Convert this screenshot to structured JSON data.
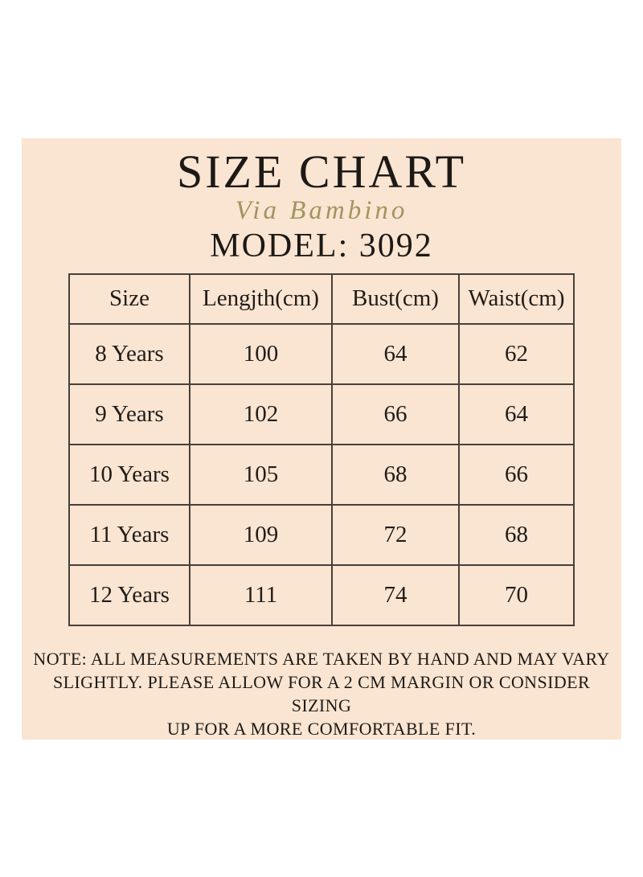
{
  "colors": {
    "page_background": "#ffffff",
    "panel_background": "#fae5d2",
    "table_border": "#47403a",
    "text": "#221e1b",
    "brand_gold": "#a2945f"
  },
  "header": {
    "title": "SIZE CHART",
    "brand": "Via Bambino",
    "model": "MODEL: 3092"
  },
  "table": {
    "columns": [
      "Size",
      "Lengjth(cm)",
      "Bust(cm)",
      "Waist(cm)"
    ],
    "rows": [
      {
        "size": "8 Years",
        "length": "100",
        "bust": "64",
        "waist": "62"
      },
      {
        "size": "9 Years",
        "length": "102",
        "bust": "66",
        "waist": "64"
      },
      {
        "size": "10 Years",
        "length": "105",
        "bust": "68",
        "waist": "66"
      },
      {
        "size": "11 Years",
        "length": "109",
        "bust": "72",
        "waist": "68"
      },
      {
        "size": "12 Years",
        "length": "111",
        "bust": "74",
        "waist": "70"
      }
    ]
  },
  "note": {
    "lines": [
      "NOTE: ALL MEASUREMENTS ARE TAKEN BY HAND AND MAY VARY",
      "SLIGHTLY. PLEASE ALLOW FOR A 2 CM MARGIN OR CONSIDER SIZING",
      "UP FOR A MORE COMFORTABLE FIT."
    ]
  },
  "chart_data": {
    "type": "table",
    "title": "SIZE CHART",
    "subtitle": "MODEL: 3092",
    "columns": [
      "Size",
      "Lengjth(cm)",
      "Bust(cm)",
      "Waist(cm)"
    ],
    "rows": [
      [
        "8 Years",
        100,
        64,
        62
      ],
      [
        "9 Years",
        102,
        66,
        64
      ],
      [
        "10 Years",
        105,
        68,
        66
      ],
      [
        "11 Years",
        109,
        72,
        68
      ],
      [
        "12 Years",
        111,
        74,
        70
      ]
    ]
  }
}
